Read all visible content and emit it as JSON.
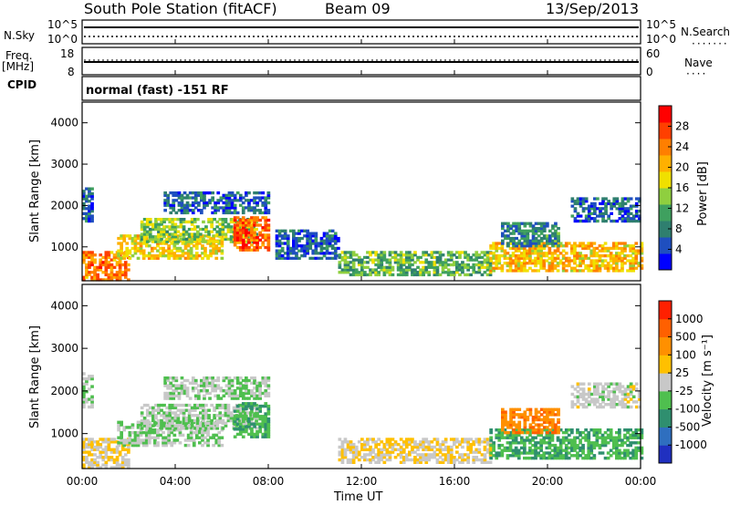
{
  "header": {
    "station": "South Pole Station (fitACF)",
    "beam": "Beam 09",
    "date": "13/Sep/2013"
  },
  "left_labels": {
    "nsky": "N.Sky",
    "freq": "Freq.",
    "mhz": "[MHz]",
    "cpid": "CPID"
  },
  "right_labels": {
    "nsearch": "N.Search",
    "nave": "Nave"
  },
  "nsky_ticks": [
    "10^5",
    "10^0"
  ],
  "nsearch_ticks": [
    "10^5",
    "10^0"
  ],
  "freq_ticks": [
    "18",
    "8"
  ],
  "nave_ticks": [
    "60",
    "0"
  ],
  "cpid_text": "normal (fast) -151 RF",
  "x_ticks": [
    "00:00",
    "04:00",
    "08:00",
    "12:00",
    "16:00",
    "20:00",
    "00:00"
  ],
  "x_label": "Time UT",
  "y_ticks": [
    "4000",
    "3000",
    "2000",
    "1000"
  ],
  "power_panel": {
    "ylabel": "Slant Range [km]",
    "cbar_label": "Power [dB]",
    "cbar_ticks": [
      "28",
      "24",
      "20",
      "16",
      "12",
      "8",
      "4"
    ],
    "cbar_colors": [
      "#0000ff",
      "#1f4fbf",
      "#2f7f6f",
      "#3fa05f",
      "#8fcf3f",
      "#f0e000",
      "#ffb000",
      "#ff7f00",
      "#ff3f00",
      "#ff0000"
    ]
  },
  "velocity_panel": {
    "ylabel": "Slant Range [km]",
    "cbar_label": "Velocity [m s⁻¹]",
    "cbar_ticks": [
      "1000",
      "500",
      "100",
      "25",
      "-25",
      "-100",
      "-500",
      "-1000"
    ],
    "cbar_colors": [
      "#2030c0",
      "#2f6fbf",
      "#2f8f6f",
      "#4fbf4f",
      "#c8c8c8",
      "#ffc000",
      "#ff9000",
      "#ff6000",
      "#ff2000"
    ]
  },
  "chart_data": [
    {
      "type": "heatmap",
      "title": "Power [dB]",
      "xlabel": "Time UT",
      "ylabel": "Slant Range [km]",
      "xlim": [
        0,
        24
      ],
      "ylim": [
        180,
        4500
      ],
      "clim": [
        0,
        32
      ],
      "regions": [
        {
          "t0": 0.0,
          "t1": 0.4,
          "r0": 1600,
          "r1": 2400,
          "v": 6
        },
        {
          "t0": 0.0,
          "t1": 2.0,
          "r0": 180,
          "r1": 900,
          "v": 24
        },
        {
          "t0": 1.5,
          "t1": 6.0,
          "r0": 700,
          "r1": 1300,
          "v": 18
        },
        {
          "t0": 2.5,
          "t1": 7.5,
          "r0": 1100,
          "r1": 1700,
          "v": 14
        },
        {
          "t0": 3.5,
          "t1": 8.0,
          "r0": 1800,
          "r1": 2300,
          "v": 6
        },
        {
          "t0": 6.5,
          "t1": 8.0,
          "r0": 900,
          "r1": 1700,
          "v": 26
        },
        {
          "t0": 8.3,
          "t1": 11.0,
          "r0": 700,
          "r1": 1400,
          "v": 6
        },
        {
          "t0": 11.0,
          "t1": 17.5,
          "r0": 300,
          "r1": 900,
          "v": 12
        },
        {
          "t0": 17.5,
          "t1": 24.0,
          "r0": 400,
          "r1": 1100,
          "v": 20
        },
        {
          "t0": 18.0,
          "t1": 20.5,
          "r0": 1000,
          "r1": 1600,
          "v": 8
        },
        {
          "t0": 21.0,
          "t1": 24.0,
          "r0": 1600,
          "r1": 2200,
          "v": 6
        }
      ]
    },
    {
      "type": "heatmap",
      "title": "Velocity [m s⁻¹]",
      "xlabel": "Time UT",
      "ylabel": "Slant Range [km]",
      "xlim": [
        0,
        24
      ],
      "ylim": [
        180,
        4500
      ],
      "clim": [
        -1000,
        1000
      ],
      "regions": [
        {
          "t0": 0.0,
          "t1": 0.4,
          "r0": 1600,
          "r1": 2400,
          "v": -100
        },
        {
          "t0": 0.0,
          "t1": 2.0,
          "r0": 180,
          "r1": 900,
          "v": 100
        },
        {
          "t0": 1.5,
          "t1": 6.0,
          "r0": 700,
          "r1": 1300,
          "v": -100
        },
        {
          "t0": 2.5,
          "t1": 7.5,
          "r0": 1100,
          "r1": 1700,
          "v": -100
        },
        {
          "t0": 3.5,
          "t1": 8.0,
          "r0": 1800,
          "r1": 2300,
          "v": -100
        },
        {
          "t0": 6.5,
          "t1": 8.0,
          "r0": 900,
          "r1": 1700,
          "v": -300
        },
        {
          "t0": 11.0,
          "t1": 17.5,
          "r0": 300,
          "r1": 900,
          "v": 100
        },
        {
          "t0": 17.5,
          "t1": 24.0,
          "r0": 400,
          "r1": 1100,
          "v": -300
        },
        {
          "t0": 18.0,
          "t1": 20.5,
          "r0": 1000,
          "r1": 1600,
          "v": 500
        },
        {
          "t0": 21.0,
          "t1": 24.0,
          "r0": 1600,
          "r1": 2200,
          "v": 0
        }
      ]
    }
  ]
}
